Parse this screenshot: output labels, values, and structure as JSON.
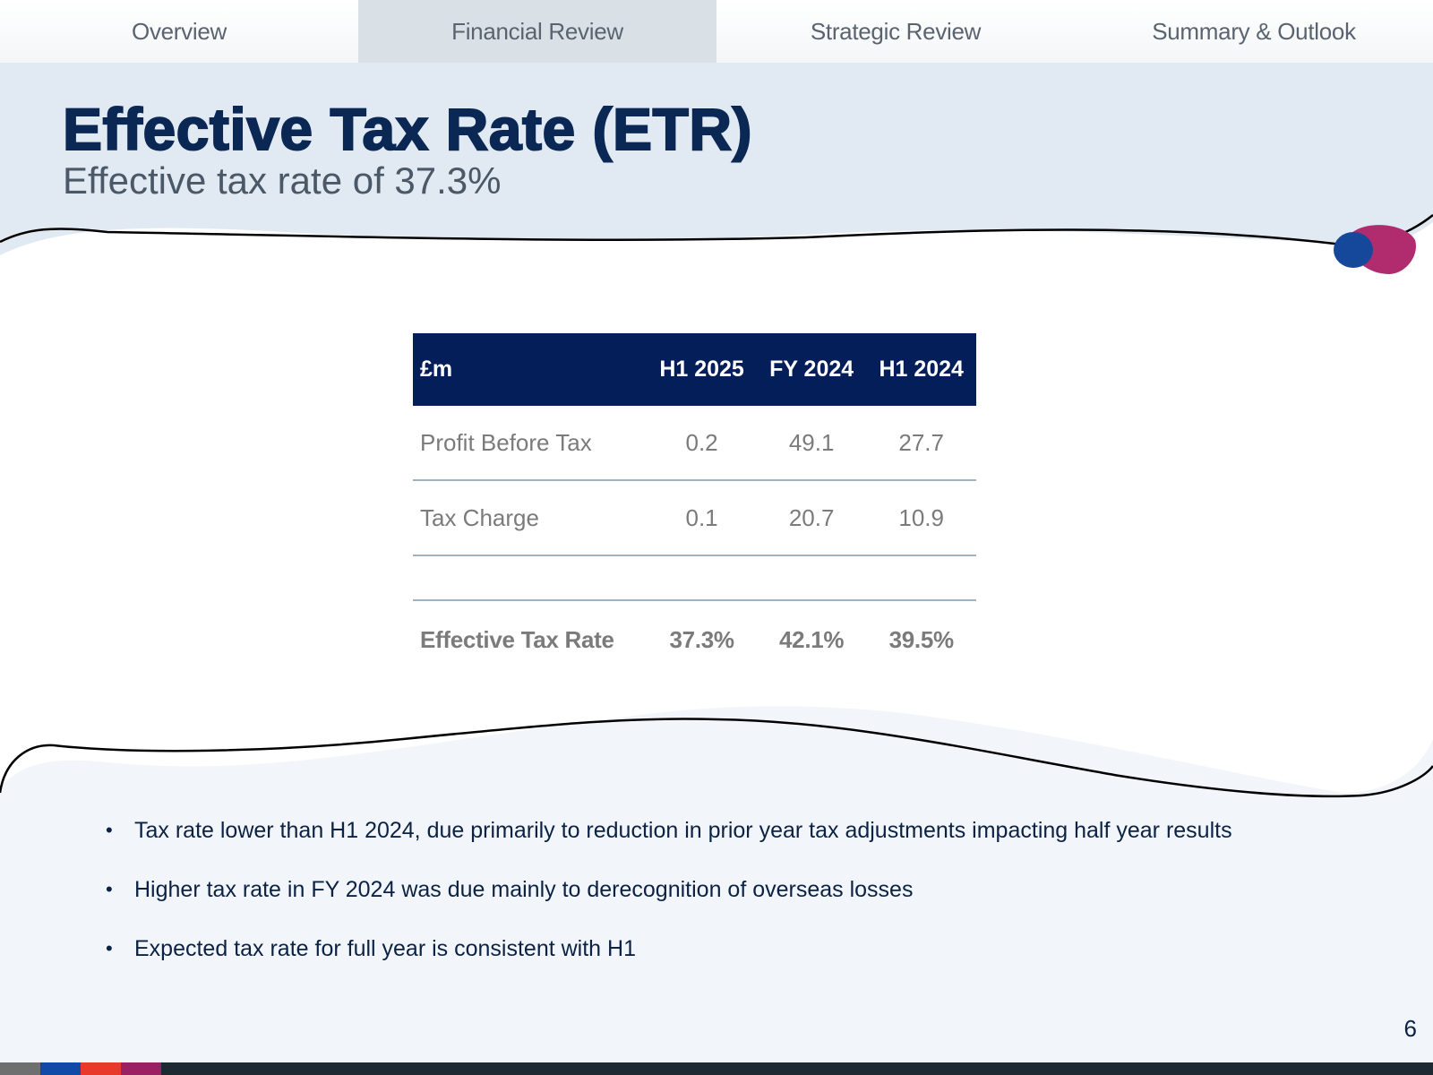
{
  "nav": {
    "tabs": [
      {
        "label": "Overview",
        "active": false
      },
      {
        "label": "Financial Review",
        "active": true
      },
      {
        "label": "Strategic Review",
        "active": false
      },
      {
        "label": "Summary & Outlook",
        "active": false
      }
    ]
  },
  "header": {
    "title": "Effective Tax Rate (ETR)",
    "subtitle": "Effective tax rate of 37.3%"
  },
  "table": {
    "headers": [
      "£m",
      "H1 2025",
      "FY 2024",
      "H1 2024"
    ],
    "rows": [
      {
        "label": "Profit Before Tax",
        "values": [
          "0.2",
          "49.1",
          "27.7"
        ]
      },
      {
        "label": "Tax Charge",
        "values": [
          "0.1",
          "20.7",
          "10.9"
        ]
      }
    ],
    "total": {
      "label": "Effective Tax Rate",
      "values": [
        "37.3%",
        "42.1%",
        "39.5%"
      ]
    }
  },
  "bullets": [
    "Tax rate lower than H1 2024, due primarily to reduction in prior year tax adjustments impacting half year results",
    "Higher tax rate in FY 2024 was due mainly to derecognition of overseas losses",
    "Expected tax rate for full year is consistent with H1"
  ],
  "page_number": "6",
  "colors": {
    "header_band": "#e1e9f2",
    "footer_band": "#f2f6fa",
    "table_header": "#041e5a",
    "blob_blue": "#15479a",
    "blob_magenta": "#b02c6e",
    "footer_segments": [
      "#6f6f6f",
      "#0f4aa6",
      "#e8392a",
      "#9a2064"
    ]
  }
}
